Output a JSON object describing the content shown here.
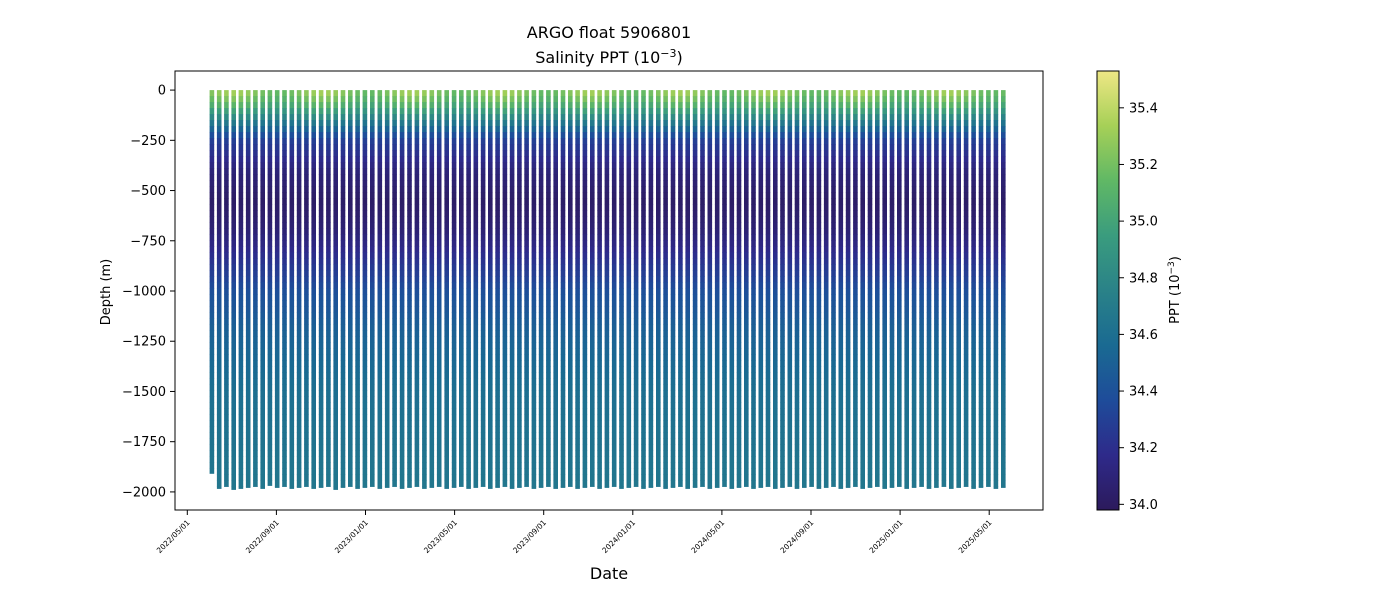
{
  "chart_data": {
    "type": "scatter",
    "title_line1": "ARGO float 5906801",
    "title_line2_prefix": "Salinity PPT (10",
    "title_line2_exp": "−3",
    "title_line2_suffix": ")",
    "xlabel": "Date",
    "ylabel": "Depth (m)",
    "colorbar_label_prefix": "PPT (10",
    "colorbar_label_exp": "−3",
    "colorbar_label_suffix": ")",
    "x_ticks": [
      "2022/05/01",
      "2022/09/01",
      "2023/01/01",
      "2023/05/01",
      "2023/09/01",
      "2024/01/01",
      "2024/05/01",
      "2024/09/01",
      "2025/01/01",
      "2025/05/01"
    ],
    "y_ticks": [
      0,
      -250,
      -500,
      -750,
      -1000,
      -1250,
      -1500,
      -1750,
      -2000
    ],
    "y_tick_labels": [
      "0",
      "−250",
      "−500",
      "−750",
      "−1000",
      "−1250",
      "−1500",
      "−1750",
      "−2000"
    ],
    "ylim": [
      -2090,
      95
    ],
    "colorbar_ticks": [
      34.0,
      34.2,
      34.4,
      34.6,
      34.8,
      35.0,
      35.2,
      35.4
    ],
    "colorbar_tick_labels": [
      "34.0",
      "34.2",
      "34.4",
      "34.6",
      "34.8",
      "35.0",
      "35.2",
      "35.4"
    ],
    "colorbar_range": [
      33.98,
      35.53
    ],
    "colormap": [
      "#2c1a5c",
      "#2e2a8a",
      "#1e4c9a",
      "#1a6a92",
      "#2a8288",
      "#3a9c7e",
      "#60b865",
      "#a6d057",
      "#eee785"
    ],
    "profile_date_range": [
      "2022/06/04",
      "2025/05/20"
    ],
    "profile_count": 109,
    "profile_bottom_depths_m": [
      -1910,
      -1985,
      -1975,
      -1990,
      -1985,
      -1980,
      -1975,
      -1985,
      -1970,
      -1980,
      -1975,
      -1985,
      -1980,
      -1975,
      -1985,
      -1980,
      -1975,
      -1990,
      -1980,
      -1975,
      -1985,
      -1980,
      -1975,
      -1985,
      -1980,
      -1975,
      -1985,
      -1980,
      -1975,
      -1985,
      -1980,
      -1975,
      -1985,
      -1980,
      -1975,
      -1985,
      -1980,
      -1975,
      -1985,
      -1980,
      -1975,
      -1985,
      -1980,
      -1975,
      -1985,
      -1980,
      -1975,
      -1985,
      -1980,
      -1975,
      -1985,
      -1980,
      -1975,
      -1985,
      -1980,
      -1975,
      -1985,
      -1980,
      -1975,
      -1985,
      -1980,
      -1975,
      -1985,
      -1980,
      -1975,
      -1985,
      -1980,
      -1975,
      -1985,
      -1980,
      -1975,
      -1985,
      -1980,
      -1975,
      -1985,
      -1980,
      -1975,
      -1985,
      -1980,
      -1975,
      -1985,
      -1980,
      -1975,
      -1985,
      -1980,
      -1975,
      -1985,
      -1980,
      -1975,
      -1985,
      -1980,
      -1975,
      -1985,
      -1980,
      -1975,
      -1985,
      -1980,
      -1975,
      -1985,
      -1980,
      -1975,
      -1985,
      -1980,
      -1975,
      -1985,
      -1980,
      -1975,
      -1985,
      -1980
    ],
    "surface_salinity_seasonal": {
      "summer_peak": 35.45,
      "winter_low": 35.1
    },
    "salinity_profile_model": [
      {
        "depth": 0,
        "psu": 35.25
      },
      {
        "depth": -60,
        "psu": 35.0
      },
      {
        "depth": -150,
        "psu": 34.6
      },
      {
        "depth": -250,
        "psu": 34.3
      },
      {
        "depth": -400,
        "psu": 34.1
      },
      {
        "depth": -550,
        "psu": 34.02
      },
      {
        "depth": -700,
        "psu": 34.08
      },
      {
        "depth": -850,
        "psu": 34.22
      },
      {
        "depth": -1000,
        "psu": 34.38
      },
      {
        "depth": -1200,
        "psu": 34.5
      },
      {
        "depth": -1500,
        "psu": 34.6
      },
      {
        "depth": -2000,
        "psu": 34.66
      }
    ]
  }
}
